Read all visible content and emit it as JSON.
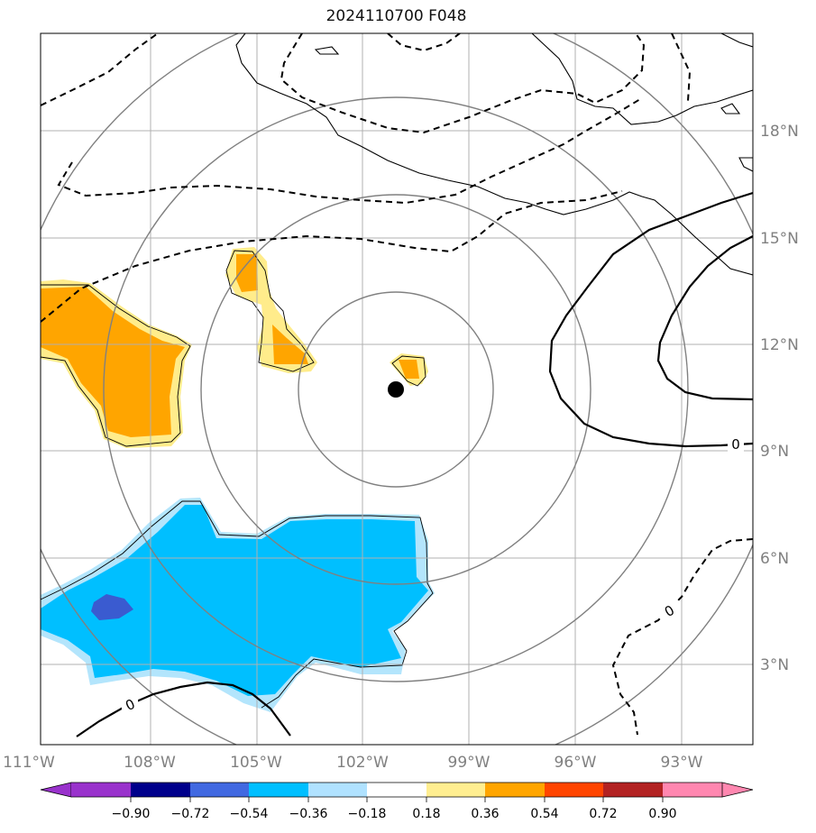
{
  "title": "2024110700 F048",
  "map": {
    "lon_ticks": [
      "111°W",
      "108°W",
      "105°W",
      "102°W",
      "99°W",
      "96°W",
      "93°W"
    ],
    "lat_ticks": [
      "18°N",
      "15°N",
      "12°N",
      "9°N",
      "6°N",
      "3°N"
    ],
    "lon_range": [
      -111,
      -91
    ],
    "lat_range": [
      1,
      21
    ],
    "grid": true,
    "storm_center": {
      "lon": -100.9,
      "lat": 10.7,
      "marker": "black-dot"
    },
    "range_rings": "concentric circles around storm center",
    "contour_labels": [
      "0",
      "0",
      "0"
    ],
    "colors": {
      "grid": "#b0b0b0",
      "rings": "#808080",
      "coast": "#000000",
      "fill_light_blue": "#b3e5fc",
      "fill_blue": "#00bfff",
      "fill_royal_blue": "#3a5bd0",
      "fill_light_yellow": "#ffec8b",
      "fill_orange": "#ffa500"
    }
  },
  "colorbar": {
    "ticks": [
      "−0.90",
      "−0.72",
      "−0.54",
      "−0.36",
      "−0.18",
      "0.18",
      "0.36",
      "0.54",
      "0.72",
      "0.90"
    ],
    "colors": [
      "#9932cc",
      "#00008b",
      "#4169e1",
      "#00bfff",
      "#b0e2ff",
      "#ffffff",
      "#ffee90",
      "#ffa500",
      "#ff4500",
      "#b22222",
      "#ff87b0"
    ],
    "extend": "both"
  }
}
